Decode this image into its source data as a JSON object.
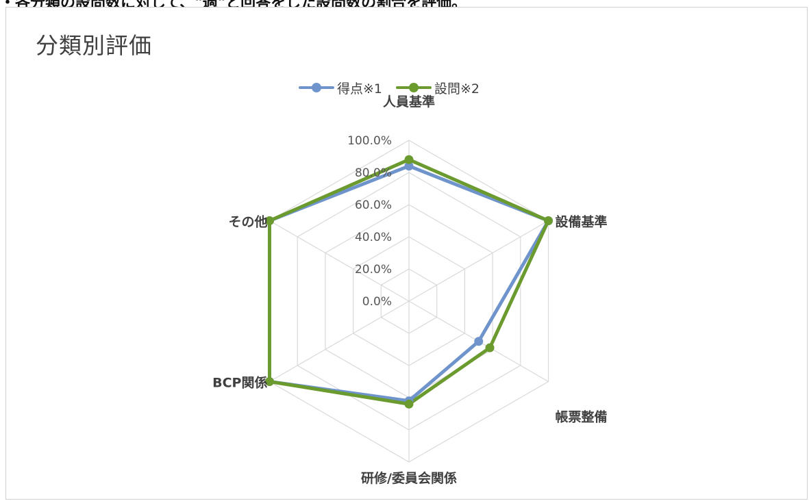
{
  "header": {
    "top_text": "・各分類の設問数に対して、\"適\"と回答をした設問数の割合を評価。"
  },
  "chart_data": {
    "type": "radar",
    "title": "分類別評価",
    "categories": [
      "人員基準",
      "設備基準",
      "帳票整備",
      "研修/委員会関係",
      "BCP関係",
      "その他"
    ],
    "tick_labels": [
      "0.0%",
      "20.0%",
      "40.0%",
      "60.0%",
      "80.0%",
      "100.0%"
    ],
    "rlim": [
      0,
      100
    ],
    "grid": true,
    "legend_position": "top",
    "series": [
      {
        "name": "得点※1",
        "color": "#6f94cc",
        "values": [
          84,
          100,
          50,
          62,
          100,
          100
        ]
      },
      {
        "name": "設問※2",
        "color": "#6b9a2f",
        "values": [
          88,
          100,
          58,
          64,
          100,
          100
        ]
      }
    ]
  }
}
